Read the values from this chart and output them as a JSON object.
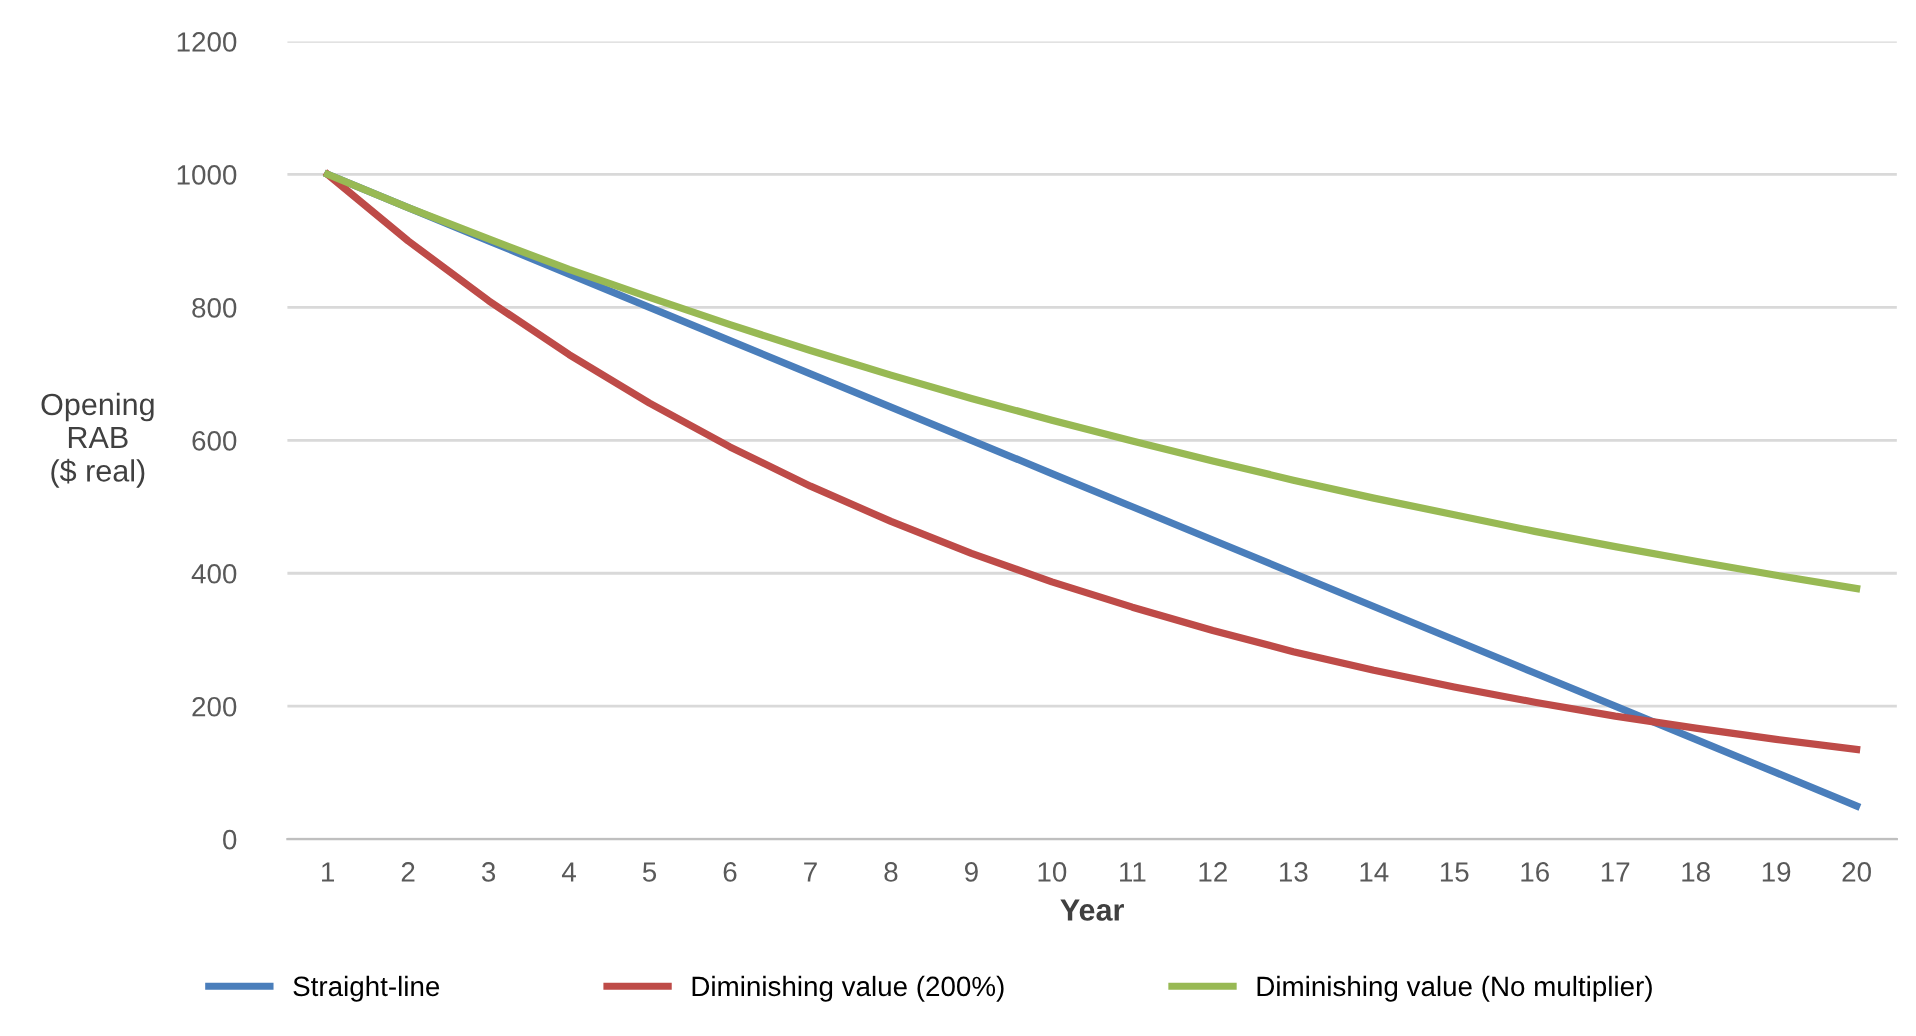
{
  "chart_data": {
    "type": "line",
    "xlabel": "Year",
    "ylabel": "Opening\nRAB\n($ real)",
    "categories": [
      "1",
      "2",
      "3",
      "4",
      "5",
      "6",
      "7",
      "8",
      "9",
      "10",
      "11",
      "12",
      "13",
      "14",
      "15",
      "16",
      "17",
      "18",
      "19",
      "20"
    ],
    "series": [
      {
        "name": "Straight-line",
        "color": "#4a7ebb",
        "values": [
          1000,
          950,
          900,
          850,
          800,
          750,
          700,
          650,
          600,
          550,
          500,
          450,
          400,
          350,
          300,
          250,
          200,
          150,
          100,
          50
        ]
      },
      {
        "name": "Diminishing value (200%)",
        "color": "#be4b48",
        "values": [
          1000,
          900,
          810,
          729,
          656,
          590,
          531,
          478,
          430,
          387,
          349,
          314,
          282,
          254,
          229,
          206,
          185,
          167,
          150,
          135
        ]
      },
      {
        "name": "Diminishing value (No multiplier)",
        "color": "#98b954",
        "values": [
          1000,
          950,
          903,
          857,
          815,
          774,
          735,
          698,
          663,
          630,
          599,
          569,
          540,
          513,
          488,
          463,
          440,
          418,
          397,
          377
        ]
      }
    ],
    "ylim": [
      0,
      1200
    ],
    "yticks": [
      0,
      200,
      400,
      600,
      800,
      1000,
      1200
    ],
    "grid": "y",
    "legend": "bottom",
    "marker": "none",
    "line_style": "solid"
  }
}
